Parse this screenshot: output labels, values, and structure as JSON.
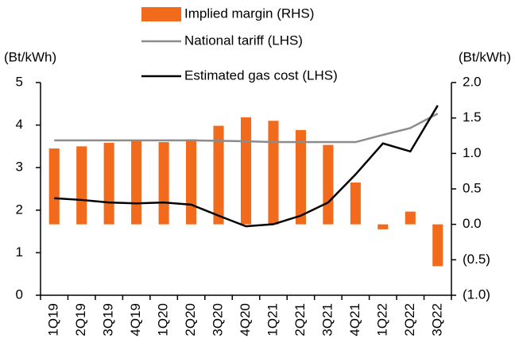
{
  "chart_data": {
    "type": "bar",
    "y_label": "(Bt/kWh)",
    "y2_label": "(Bt/kWh)",
    "categories": [
      "1Q19",
      "2Q19",
      "3Q19",
      "4Q19",
      "1Q20",
      "2Q20",
      "3Q20",
      "4Q20",
      "1Q21",
      "2Q21",
      "3Q21",
      "4Q21",
      "1Q22",
      "2Q22",
      "3Q22"
    ],
    "series": [
      {
        "name": "Implied margin (RHS)",
        "type": "bar",
        "axis": "y2",
        "color": "#f26a1b",
        "values": [
          1.07,
          1.1,
          1.15,
          1.18,
          1.16,
          1.2,
          1.39,
          1.51,
          1.46,
          1.33,
          1.12,
          0.59,
          -0.07,
          0.18,
          -0.59
        ]
      },
      {
        "name": "National tariff (LHS)",
        "type": "line",
        "axis": "y",
        "color": "#8c8c8c",
        "values": [
          3.64,
          3.64,
          3.64,
          3.64,
          3.64,
          3.64,
          3.63,
          3.62,
          3.6,
          3.6,
          3.6,
          3.6,
          3.77,
          3.93,
          4.27
        ]
      },
      {
        "name": "Estimated gas cost (LHS)",
        "type": "line",
        "axis": "y",
        "color": "#000000",
        "values": [
          2.28,
          2.24,
          2.18,
          2.16,
          2.18,
          2.13,
          1.87,
          1.62,
          1.67,
          1.87,
          2.18,
          2.84,
          3.57,
          3.38,
          4.46
        ]
      }
    ],
    "ylim": [
      0,
      5
    ],
    "yticks": [
      0,
      1,
      2,
      3,
      4,
      5
    ],
    "y2lim": [
      -1,
      2
    ],
    "y2ticks": [
      {
        "value": -1,
        "label": "(1.0)"
      },
      {
        "value": -0.5,
        "label": "(0.5)"
      },
      {
        "value": 0,
        "label": "0.0"
      },
      {
        "value": 0.5,
        "label": "0.5"
      },
      {
        "value": 1,
        "label": "1.0"
      },
      {
        "value": 1.5,
        "label": "1.5"
      },
      {
        "value": 2,
        "label": "2.0"
      }
    ],
    "grid": false
  }
}
